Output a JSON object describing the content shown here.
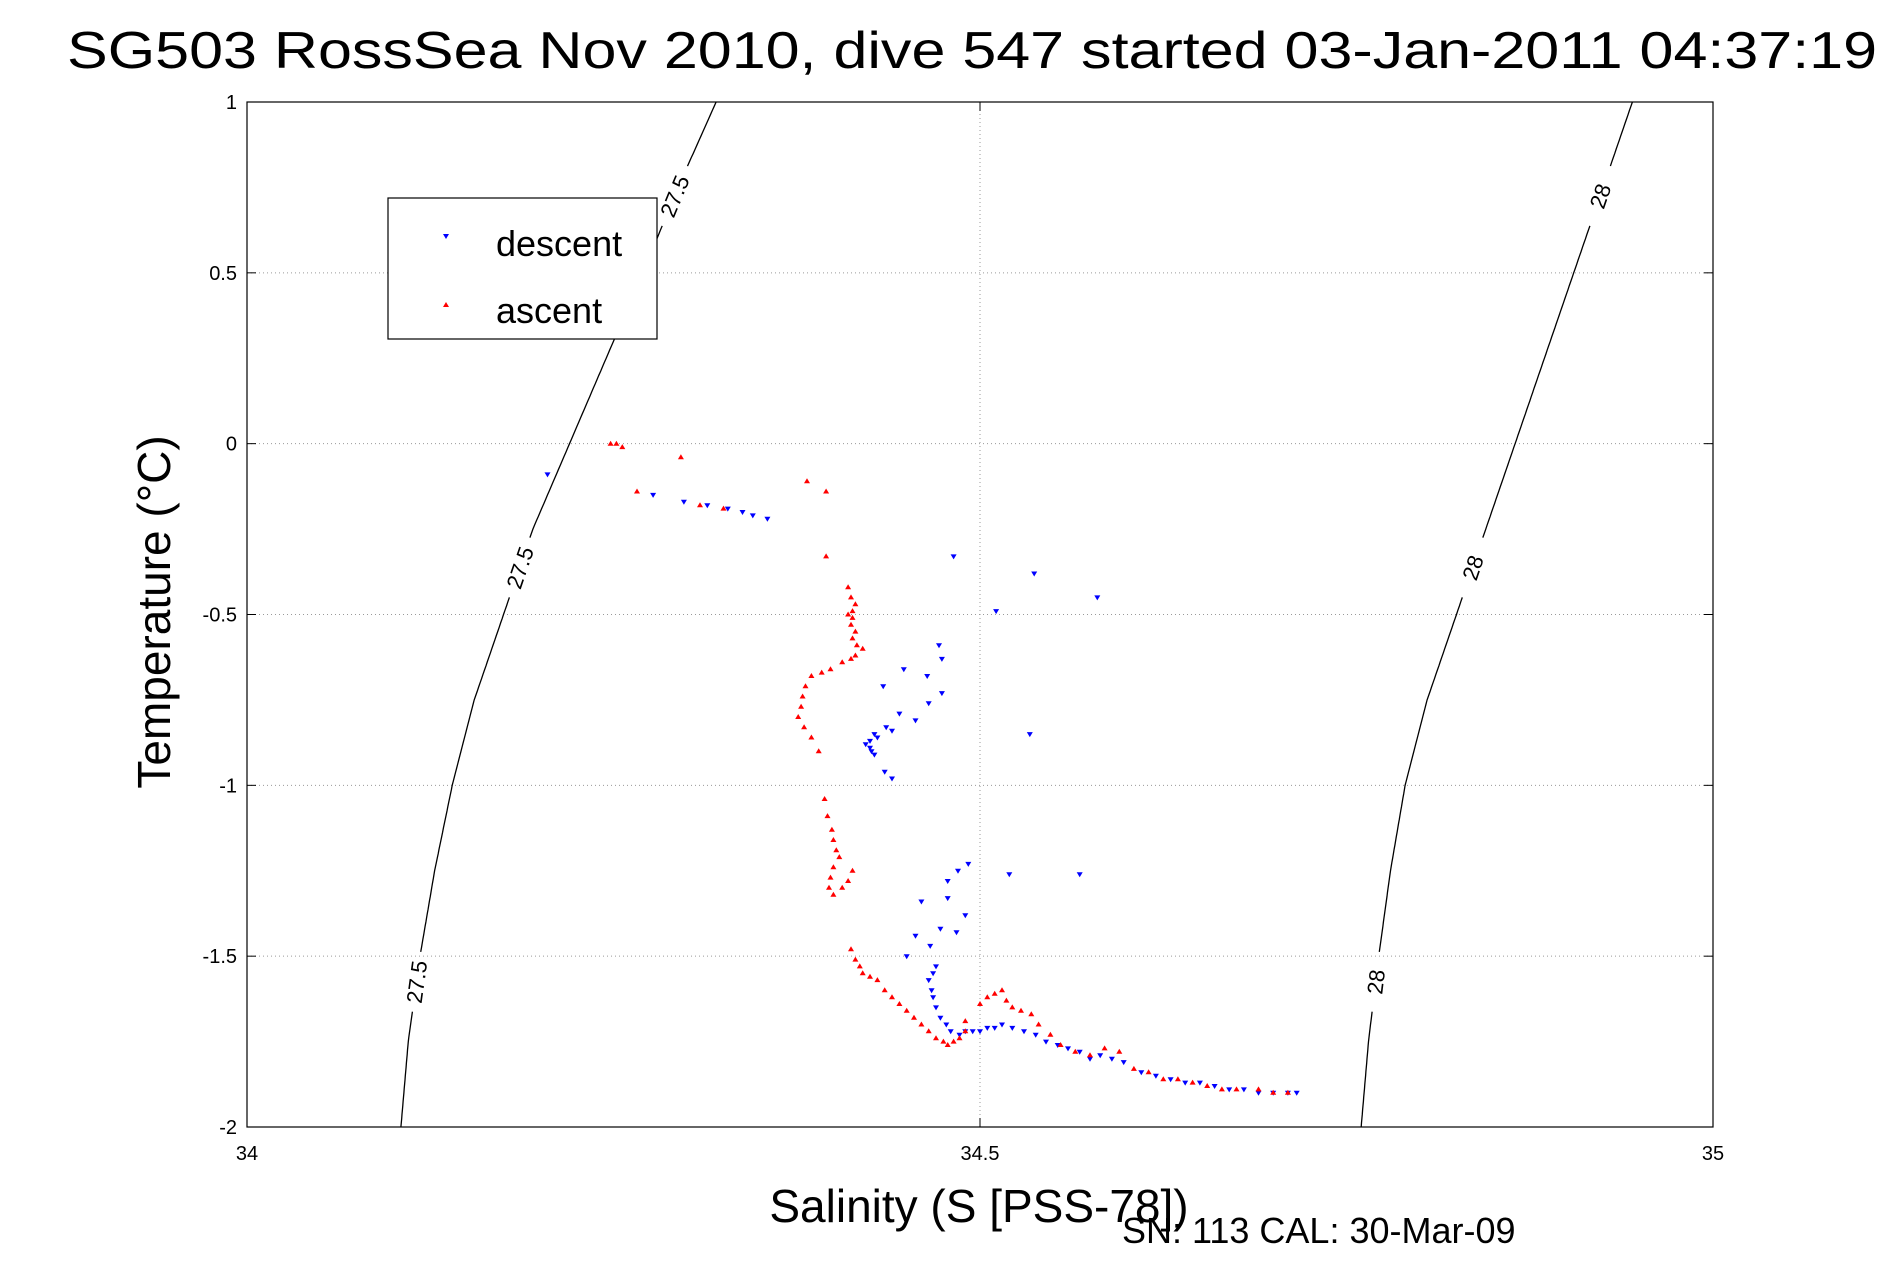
{
  "chart_data": {
    "type": "scatter",
    "title": "SG503 RossSea Nov 2010, dive 547 started 03-Jan-2011 04:37:19",
    "xlabel": "Salinity (S [PSS-78])",
    "ylabel": "Temperature (°C)",
    "xlim": [
      34,
      35
    ],
    "ylim": [
      -2,
      1
    ],
    "xticks": [
      34,
      34.5,
      35
    ],
    "xtick_labels": [
      "34",
      "34.5",
      "35"
    ],
    "yticks": [
      -2,
      -1.5,
      -1,
      -0.5,
      0,
      0.5,
      1
    ],
    "ytick_labels": [
      "-2",
      "-1.5",
      "-1",
      "-0.5",
      "0",
      "0.5",
      "1"
    ],
    "grid": true,
    "legend_position": "upper-left",
    "footer": "SN: 113  CAL: 30-Mar-09",
    "density_contours": [
      {
        "value": 27.5,
        "labels": [
          "27.5",
          "27.5",
          "27.5"
        ],
        "points": [
          [
            34.32,
            1.0
          ],
          [
            34.294,
            0.75
          ],
          [
            34.27,
            0.5
          ],
          [
            34.245,
            0.25
          ],
          [
            34.22,
            0.0
          ],
          [
            34.195,
            -0.25
          ],
          [
            34.175,
            -0.5
          ],
          [
            34.155,
            -0.75
          ],
          [
            34.14,
            -1.0
          ],
          [
            34.128,
            -1.25
          ],
          [
            34.118,
            -1.5
          ],
          [
            34.11,
            -1.75
          ],
          [
            34.105,
            -2.0
          ]
        ]
      },
      {
        "value": 28,
        "labels": [
          "28",
          "28",
          "28"
        ],
        "points": [
          [
            34.945,
            1.0
          ],
          [
            34.925,
            0.75
          ],
          [
            34.905,
            0.5
          ],
          [
            34.885,
            0.25
          ],
          [
            34.865,
            0.0
          ],
          [
            34.845,
            -0.25
          ],
          [
            34.825,
            -0.5
          ],
          [
            34.805,
            -0.75
          ],
          [
            34.79,
            -1.0
          ],
          [
            34.78,
            -1.25
          ],
          [
            34.772,
            -1.5
          ],
          [
            34.765,
            -1.75
          ],
          [
            34.76,
            -2.0
          ]
        ]
      }
    ],
    "series": [
      {
        "name": "descent",
        "color": "#0000ff",
        "marker": "triangle-down",
        "points": [
          [
            34.205,
            -0.09
          ],
          [
            34.277,
            -0.15
          ],
          [
            34.298,
            -0.17
          ],
          [
            34.314,
            -0.18
          ],
          [
            34.328,
            -0.19
          ],
          [
            34.338,
            -0.2
          ],
          [
            34.345,
            -0.21
          ],
          [
            34.355,
            -0.22
          ],
          [
            34.482,
            -0.33
          ],
          [
            34.537,
            -0.38
          ],
          [
            34.58,
            -0.45
          ],
          [
            34.511,
            -0.49
          ],
          [
            34.472,
            -0.59
          ],
          [
            34.474,
            -0.63
          ],
          [
            34.448,
            -0.66
          ],
          [
            34.464,
            -0.68
          ],
          [
            34.434,
            -0.71
          ],
          [
            34.474,
            -0.73
          ],
          [
            34.465,
            -0.76
          ],
          [
            34.445,
            -0.79
          ],
          [
            34.456,
            -0.81
          ],
          [
            34.436,
            -0.83
          ],
          [
            34.44,
            -0.84
          ],
          [
            34.428,
            -0.85
          ],
          [
            34.43,
            -0.86
          ],
          [
            34.425,
            -0.87
          ],
          [
            34.422,
            -0.88
          ],
          [
            34.425,
            -0.89
          ],
          [
            34.426,
            -0.9
          ],
          [
            34.428,
            -0.91
          ],
          [
            34.435,
            -0.96
          ],
          [
            34.44,
            -0.98
          ],
          [
            34.534,
            -0.85
          ],
          [
            34.492,
            -1.23
          ],
          [
            34.485,
            -1.25
          ],
          [
            34.478,
            -1.28
          ],
          [
            34.52,
            -1.26
          ],
          [
            34.568,
            -1.26
          ],
          [
            34.478,
            -1.33
          ],
          [
            34.46,
            -1.34
          ],
          [
            34.49,
            -1.38
          ],
          [
            34.473,
            -1.42
          ],
          [
            34.456,
            -1.44
          ],
          [
            34.484,
            -1.43
          ],
          [
            34.466,
            -1.47
          ],
          [
            34.45,
            -1.5
          ],
          [
            34.47,
            -1.53
          ],
          [
            34.468,
            -1.55
          ],
          [
            34.465,
            -1.57
          ],
          [
            34.467,
            -1.6
          ],
          [
            34.468,
            -1.62
          ],
          [
            34.47,
            -1.65
          ],
          [
            34.473,
            -1.68
          ],
          [
            34.477,
            -1.7
          ],
          [
            34.48,
            -1.72
          ],
          [
            34.486,
            -1.73
          ],
          [
            34.49,
            -1.72
          ],
          [
            34.495,
            -1.72
          ],
          [
            34.5,
            -1.72
          ],
          [
            34.505,
            -1.71
          ],
          [
            34.51,
            -1.71
          ],
          [
            34.515,
            -1.7
          ],
          [
            34.522,
            -1.71
          ],
          [
            34.53,
            -1.72
          ],
          [
            34.538,
            -1.73
          ],
          [
            34.545,
            -1.75
          ],
          [
            34.553,
            -1.76
          ],
          [
            34.56,
            -1.77
          ],
          [
            34.568,
            -1.78
          ],
          [
            34.575,
            -1.8
          ],
          [
            34.582,
            -1.79
          ],
          [
            34.59,
            -1.8
          ],
          [
            34.598,
            -1.81
          ],
          [
            34.61,
            -1.84
          ],
          [
            34.62,
            -1.85
          ],
          [
            34.63,
            -1.86
          ],
          [
            34.64,
            -1.87
          ],
          [
            34.65,
            -1.87
          ],
          [
            34.66,
            -1.88
          ],
          [
            34.67,
            -1.89
          ],
          [
            34.68,
            -1.89
          ],
          [
            34.69,
            -1.9
          ],
          [
            34.7,
            -1.9
          ],
          [
            34.71,
            -1.9
          ],
          [
            34.716,
            -1.9
          ]
        ]
      },
      {
        "name": "ascent",
        "color": "#ff0000",
        "marker": "triangle-up",
        "points": [
          [
            34.248,
            0.0
          ],
          [
            34.252,
            0.0
          ],
          [
            34.256,
            -0.01
          ],
          [
            34.296,
            -0.04
          ],
          [
            34.266,
            -0.14
          ],
          [
            34.309,
            -0.18
          ],
          [
            34.325,
            -0.19
          ],
          [
            34.382,
            -0.11
          ],
          [
            34.395,
            -0.14
          ],
          [
            34.395,
            -0.33
          ],
          [
            34.41,
            -0.42
          ],
          [
            34.412,
            -0.45
          ],
          [
            34.415,
            -0.47
          ],
          [
            34.413,
            -0.49
          ],
          [
            34.41,
            -0.5
          ],
          [
            34.413,
            -0.51
          ],
          [
            34.412,
            -0.53
          ],
          [
            34.415,
            -0.55
          ],
          [
            34.413,
            -0.57
          ],
          [
            34.416,
            -0.59
          ],
          [
            34.42,
            -0.6
          ],
          [
            34.415,
            -0.62
          ],
          [
            34.412,
            -0.63
          ],
          [
            34.406,
            -0.64
          ],
          [
            34.398,
            -0.66
          ],
          [
            34.392,
            -0.67
          ],
          [
            34.385,
            -0.68
          ],
          [
            34.381,
            -0.71
          ],
          [
            34.379,
            -0.74
          ],
          [
            34.378,
            -0.77
          ],
          [
            34.376,
            -0.8
          ],
          [
            34.38,
            -0.83
          ],
          [
            34.385,
            -0.86
          ],
          [
            34.39,
            -0.9
          ],
          [
            34.394,
            -1.04
          ],
          [
            34.396,
            -1.09
          ],
          [
            34.399,
            -1.13
          ],
          [
            34.4,
            -1.16
          ],
          [
            34.402,
            -1.19
          ],
          [
            34.404,
            -1.21
          ],
          [
            34.4,
            -1.24
          ],
          [
            34.398,
            -1.27
          ],
          [
            34.397,
            -1.3
          ],
          [
            34.4,
            -1.32
          ],
          [
            34.406,
            -1.3
          ],
          [
            34.41,
            -1.28
          ],
          [
            34.413,
            -1.25
          ],
          [
            34.412,
            -1.48
          ],
          [
            34.415,
            -1.51
          ],
          [
            34.418,
            -1.53
          ],
          [
            34.42,
            -1.55
          ],
          [
            34.425,
            -1.56
          ],
          [
            34.43,
            -1.57
          ],
          [
            34.435,
            -1.6
          ],
          [
            34.44,
            -1.62
          ],
          [
            34.445,
            -1.64
          ],
          [
            34.45,
            -1.66
          ],
          [
            34.455,
            -1.68
          ],
          [
            34.46,
            -1.7
          ],
          [
            34.465,
            -1.72
          ],
          [
            34.47,
            -1.74
          ],
          [
            34.475,
            -1.75
          ],
          [
            34.478,
            -1.76
          ],
          [
            34.482,
            -1.75
          ],
          [
            34.486,
            -1.74
          ],
          [
            34.49,
            -1.72
          ],
          [
            34.49,
            -1.69
          ],
          [
            34.5,
            -1.64
          ],
          [
            34.505,
            -1.62
          ],
          [
            34.51,
            -1.61
          ],
          [
            34.515,
            -1.6
          ],
          [
            34.518,
            -1.63
          ],
          [
            34.522,
            -1.65
          ],
          [
            34.528,
            -1.66
          ],
          [
            34.535,
            -1.67
          ],
          [
            34.54,
            -1.7
          ],
          [
            34.548,
            -1.73
          ],
          [
            34.555,
            -1.76
          ],
          [
            34.565,
            -1.78
          ],
          [
            34.575,
            -1.79
          ],
          [
            34.585,
            -1.77
          ],
          [
            34.595,
            -1.78
          ],
          [
            34.605,
            -1.83
          ],
          [
            34.615,
            -1.84
          ],
          [
            34.625,
            -1.86
          ],
          [
            34.635,
            -1.86
          ],
          [
            34.645,
            -1.87
          ],
          [
            34.655,
            -1.88
          ],
          [
            34.665,
            -1.89
          ],
          [
            34.675,
            -1.89
          ],
          [
            34.69,
            -1.89
          ],
          [
            34.7,
            -1.9
          ],
          [
            34.71,
            -1.9
          ]
        ]
      }
    ]
  }
}
